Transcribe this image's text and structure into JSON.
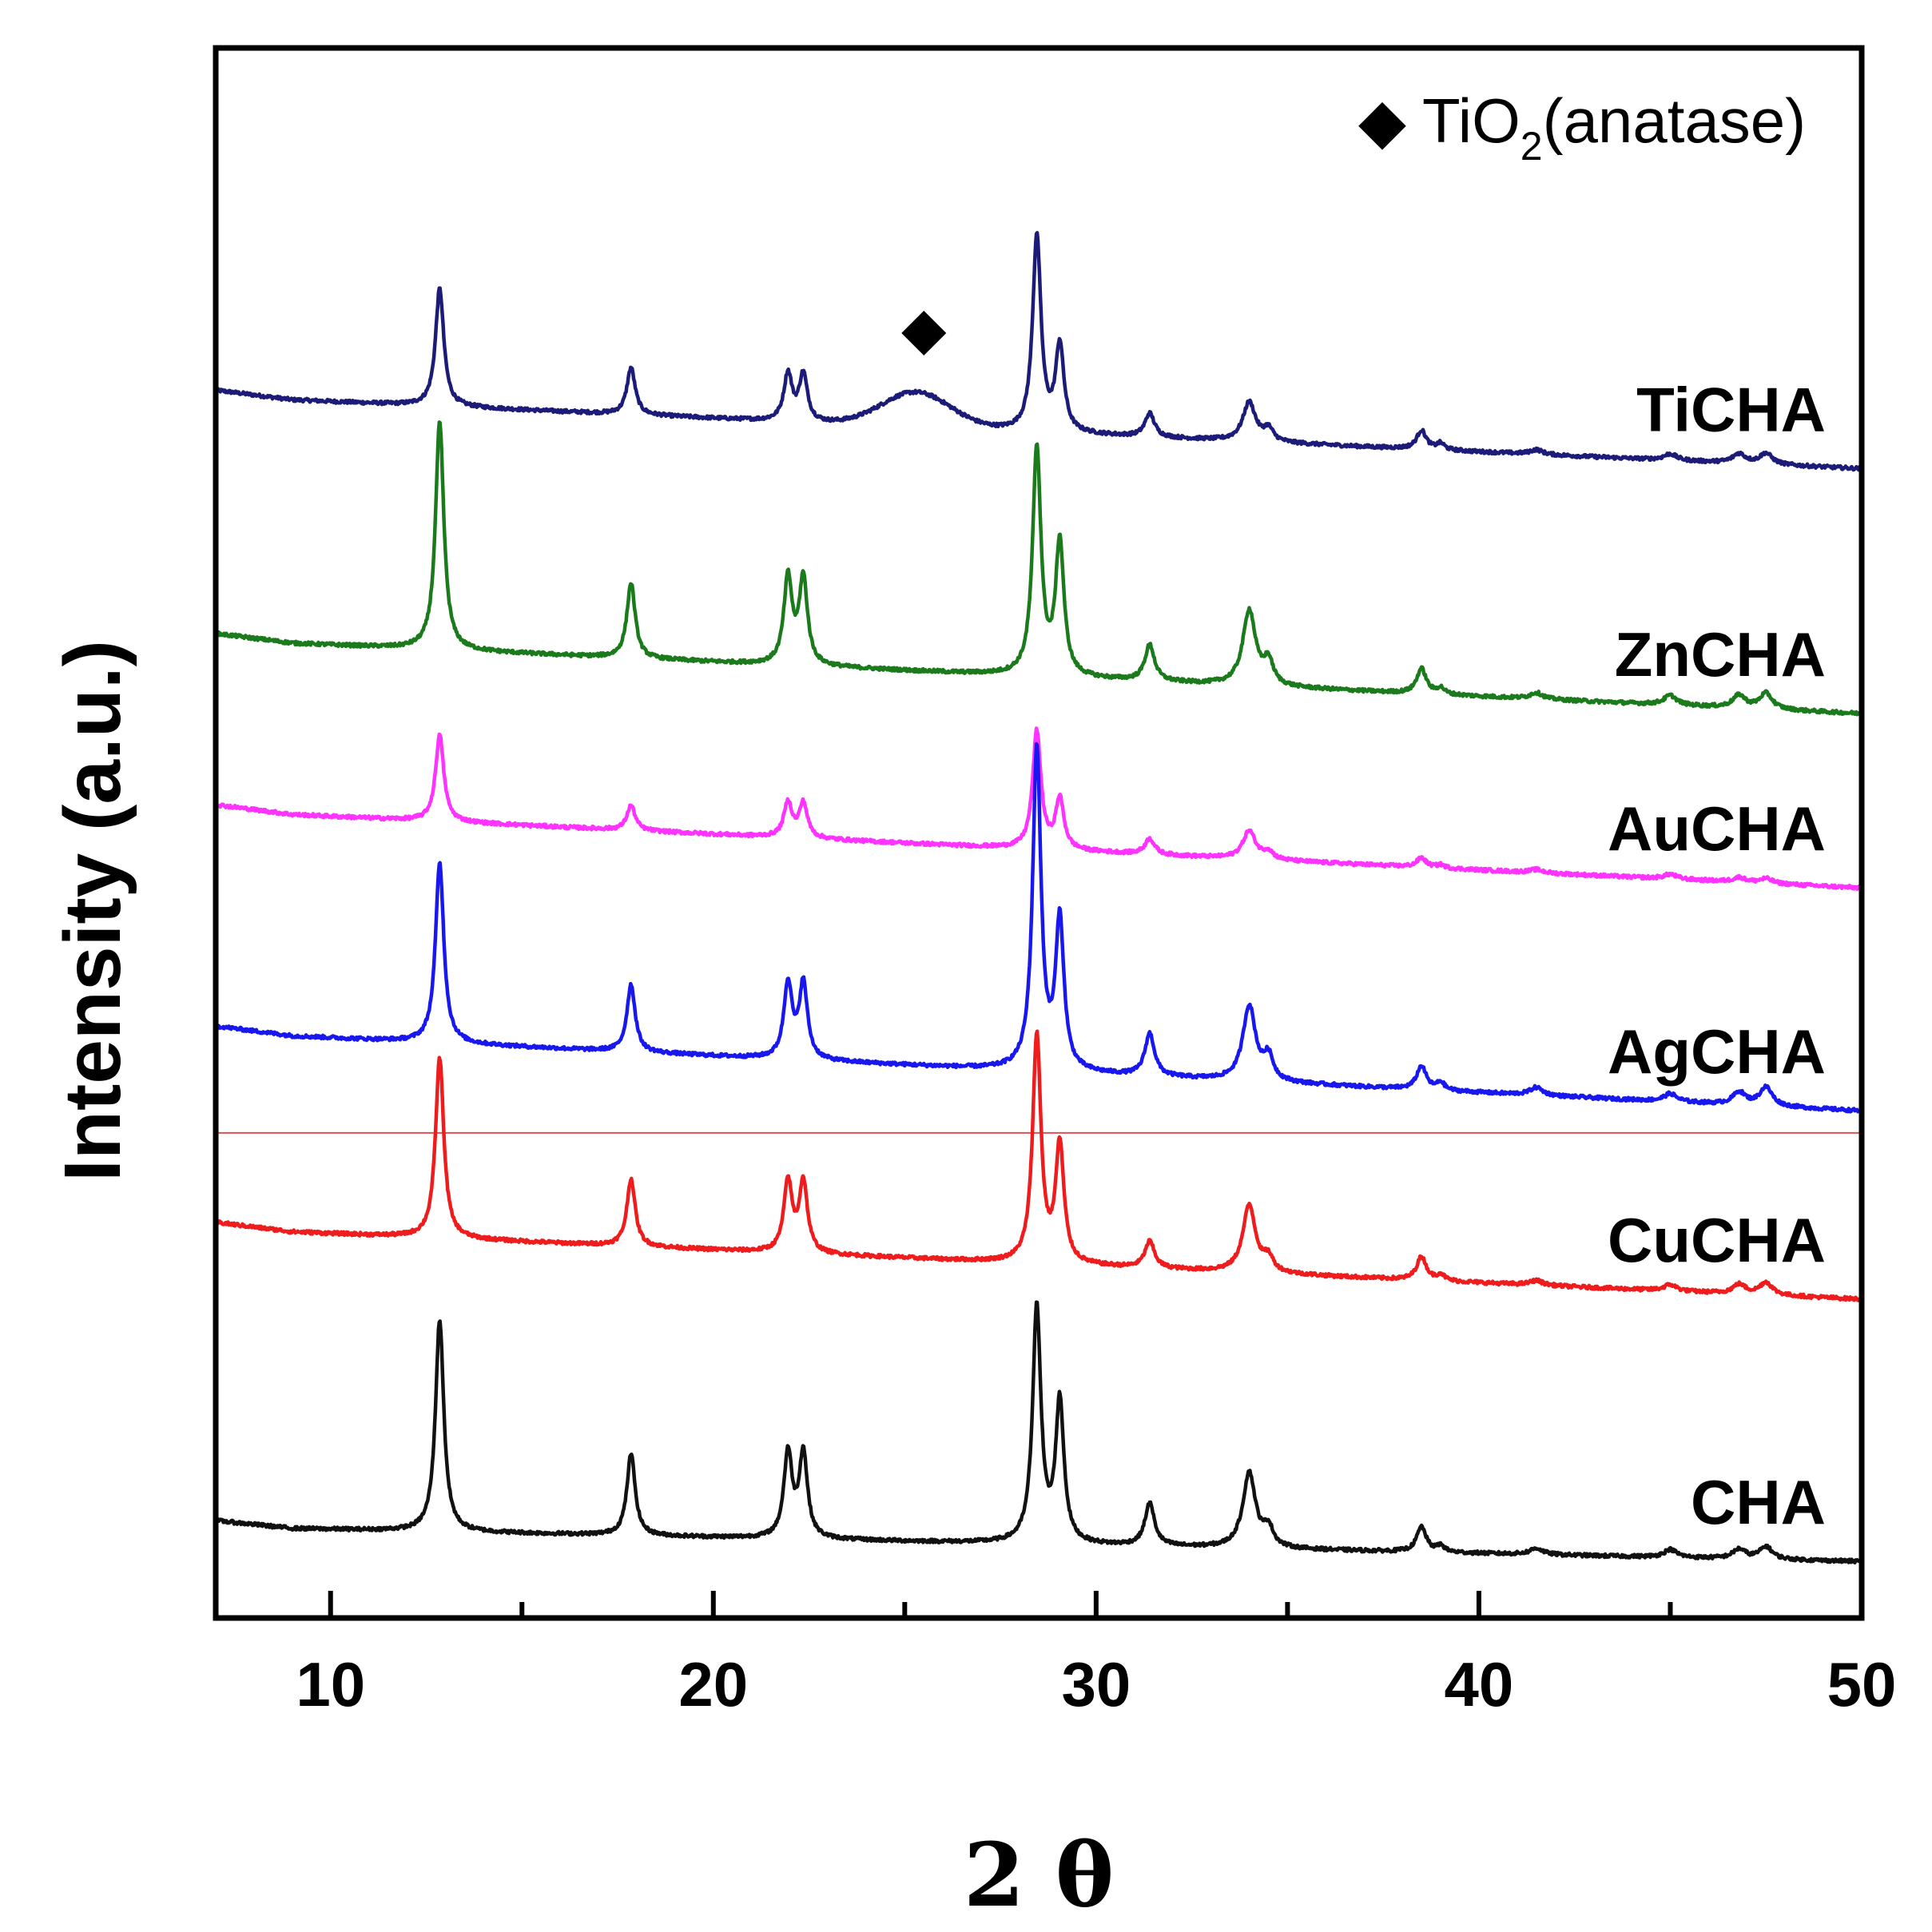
{
  "chart_data": {
    "type": "line",
    "title": "",
    "xlabel": "2 θ",
    "ylabel": "Intensity (a.u.)",
    "xlim": [
      7,
      50
    ],
    "ylim": [
      0,
      100
    ],
    "x_ticks": [
      10,
      20,
      30,
      40,
      50
    ],
    "x_tick_labels": [
      "10",
      "20",
      "30",
      "40",
      "50"
    ],
    "y_ticks_shown": false,
    "grid": false,
    "legend_position": "top-right",
    "annotation": {
      "symbol": "◆",
      "text_main": "TiO",
      "text_sub": "2",
      "text_tail": "(anatase)",
      "marker_x": 25.5,
      "marker_series": "TiCHA"
    },
    "reference_line": {
      "y": 30.9,
      "color": "#e05050"
    },
    "peaks": [
      {
        "x": 12.85,
        "w": 0.13
      },
      {
        "x": 17.85,
        "w": 0.13
      },
      {
        "x": 21.95,
        "w": 0.13
      },
      {
        "x": 22.35,
        "w": 0.13
      },
      {
        "x": 28.45,
        "w": 0.13
      },
      {
        "x": 29.05,
        "w": 0.13
      },
      {
        "x": 31.4,
        "w": 0.15
      },
      {
        "x": 34.0,
        "w": 0.2
      },
      {
        "x": 34.5,
        "w": 0.15
      },
      {
        "x": 38.5,
        "w": 0.15
      },
      {
        "x": 39.0,
        "w": 0.12
      },
      {
        "x": 41.5,
        "w": 0.2
      },
      {
        "x": 45.0,
        "w": 0.2
      },
      {
        "x": 46.8,
        "w": 0.2
      },
      {
        "x": 47.5,
        "w": 0.2
      }
    ],
    "series": [
      {
        "name": "TiCHA",
        "color": "#1c1c78",
        "baseline_start": 77.8,
        "baseline_end": 73.2,
        "peak_heights": [
          7.5,
          3.0,
          3.0,
          3.0,
          12.5,
          5.5,
          1.5,
          2.5,
          0.8,
          1.2,
          0.4,
          0.3,
          0.4,
          0.6,
          0.7
        ],
        "broad_hump": {
          "x": 25.3,
          "w": 0.9,
          "h": 2.2
        }
      },
      {
        "name": "ZnCHA",
        "color": "#1b7a1b",
        "baseline_start": 62.3,
        "baseline_end": 57.6,
        "peak_heights": [
          14.5,
          4.8,
          5.5,
          5.5,
          14.5,
          8.5,
          2.3,
          4.8,
          1.5,
          1.6,
          0.4,
          0.4,
          0.6,
          0.8,
          1.0
        ]
      },
      {
        "name": "AuCHA",
        "color": "#ff33ff",
        "baseline_start": 51.4,
        "baseline_end": 46.5,
        "peak_heights": [
          5.5,
          1.6,
          2.2,
          2.2,
          7.5,
          3.2,
          1.0,
          1.8,
          0.5,
          0.6,
          0.2,
          0.2,
          0.3,
          0.3,
          0.3
        ]
      },
      {
        "name": "AgCHA",
        "color": "#1818ee",
        "baseline_start": 37.3,
        "baseline_end": 32.3,
        "peak_heights": [
          11.5,
          4.3,
          4.8,
          4.8,
          20.5,
          9.5,
          2.7,
          4.8,
          1.5,
          1.5,
          0.5,
          0.5,
          0.5,
          0.8,
          1.2
        ]
      },
      {
        "name": "CuCHA",
        "color": "#ee1c1c",
        "baseline_start": 24.8,
        "baseline_end": 20.3,
        "peak_heights": [
          11.5,
          4.3,
          4.5,
          4.5,
          14.5,
          7.5,
          1.7,
          4.3,
          0.9,
          1.5,
          0.4,
          0.3,
          0.4,
          0.6,
          0.8
        ]
      },
      {
        "name": "CHA",
        "color": "#111111",
        "baseline_start": 5.8,
        "baseline_end": 3.6,
        "peak_heights": [
          13.5,
          5.2,
          5.4,
          5.4,
          15.0,
          9.0,
          2.7,
          4.8,
          1.2,
          1.6,
          0.4,
          0.4,
          0.5,
          0.6,
          0.8
        ]
      }
    ]
  }
}
